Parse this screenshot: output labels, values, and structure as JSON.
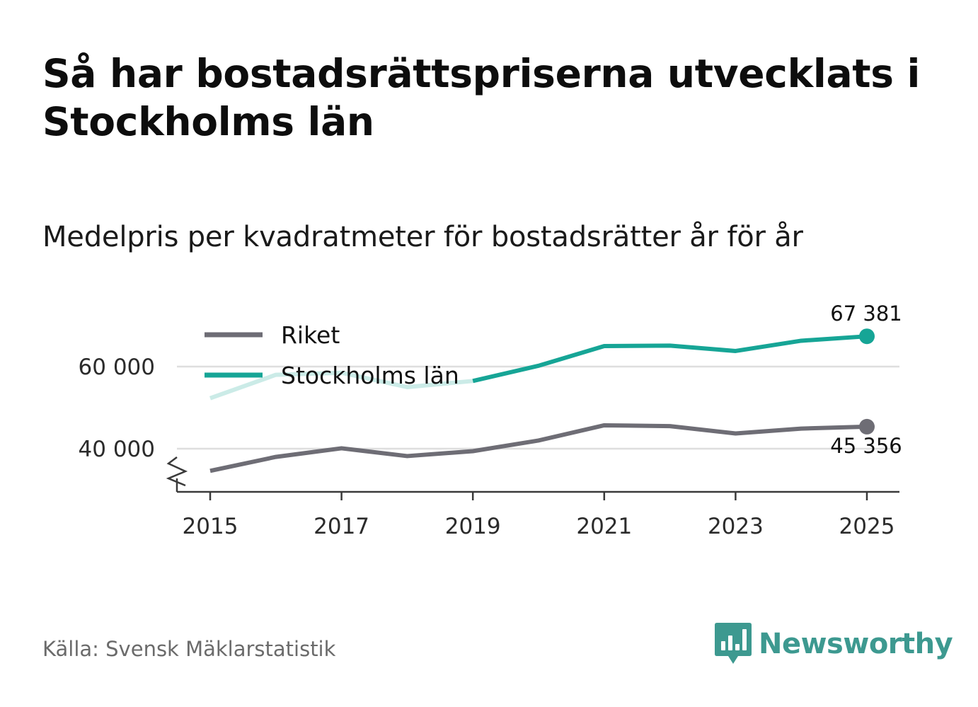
{
  "title": "Så har bostadsrättspriserna utvecklats i Stockholms län",
  "subtitle": "Medelpris per kvadratmeter för bostadsrätter år för år",
  "source": "Källa: Svensk Mäklarstatistik",
  "brand": {
    "name": "Newsworthy",
    "icon": "newsworthy-logo-icon",
    "color": "#3d9990"
  },
  "chart_data": {
    "type": "line",
    "title": "Medelpris per kvadratmeter för bostadsrätter år för år",
    "xlabel": "",
    "ylabel": "",
    "x": [
      2015,
      2016,
      2017,
      2018,
      2019,
      2020,
      2021,
      2022,
      2023,
      2024,
      2025
    ],
    "x_ticks": [
      "2015",
      "2017",
      "2019",
      "2021",
      "2023",
      "2025"
    ],
    "y_ticks": [
      {
        "value": 40000,
        "label": "40 000"
      },
      {
        "value": 60000,
        "label": "60 000"
      }
    ],
    "ylim": [
      30000,
      70000
    ],
    "axis_break": true,
    "grid": true,
    "legend_position": "top-left",
    "series": [
      {
        "name": "Riket",
        "color": "#6e6d75",
        "values": [
          34600,
          38000,
          40100,
          38200,
          39400,
          42000,
          45700,
          45500,
          43700,
          44900,
          45356
        ],
        "end_label": "45 356"
      },
      {
        "name": "Stockholms län",
        "color": "#16a596",
        "faded_color": "#cbebe7",
        "values": [
          52300,
          58000,
          58500,
          55000,
          56500,
          60200,
          65000,
          65100,
          63800,
          66300,
          67381
        ],
        "end_label": "67 381"
      }
    ]
  }
}
